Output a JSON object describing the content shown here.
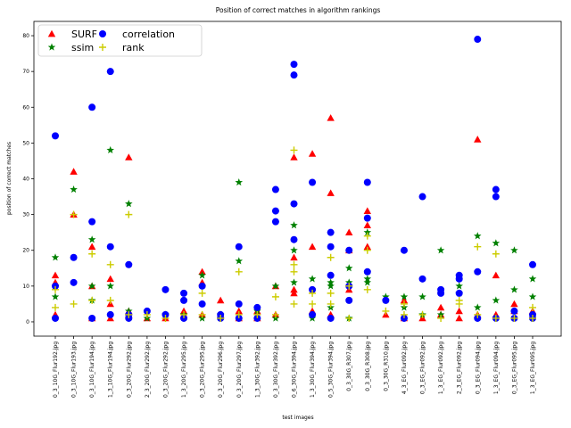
{
  "chart_data": {
    "type": "scatter",
    "title": "Position of correct matches in algorithm rankings",
    "xlabel": "test images",
    "ylabel": "position of correct matches",
    "ylim": [
      -4,
      84
    ],
    "yticks": [
      0,
      10,
      20,
      30,
      40,
      50,
      60,
      70,
      80
    ],
    "legend_placement": "top-left",
    "categories": [
      "0_3_10G_Flur192.jpg",
      "0_3_10G_Flur193.jpg",
      "0_3_10G_Flur194.jpg",
      "1_3_10G_Flur194.jpg",
      "0_3_20G_Flur292.jpg",
      "2_3_20G_Flur292.jpg",
      "0_3_20G_Flur292.jpg",
      "1_3_20G_Flur295.jpg",
      "0_3_20G_Flur295.jpg",
      "0_3_20G_Flur296.jpg",
      "0_3_20G_Flur297.jpg",
      "1_3_30G_Flur392.jpg",
      "0_3_30G_Flur392.jpg",
      "0_6_30G_Flur394.jpg",
      "1_3_30G_Flur394.jpg",
      "0_5_30G_Flur394.jpg",
      "0_3_30G_R307.jpg",
      "0_3_30G_R308.jpg",
      "0_3_30G_R310.jpg",
      "4_3_EG_Flur092.jpg",
      "0_3_EG_Flur092.jpg",
      "1_3_EG_Flur092.jpg",
      "2_3_EG_Flur092.jpg",
      "0_3_EG_Flur094.jpg",
      "1_3_EG_Flur094.jpg",
      "0_3_EG_Flur095.jpg",
      "1_3_EG_Flur095.jpg"
    ],
    "series": [
      {
        "name": "SURF",
        "marker": "triangle",
        "color": "#ff0000",
        "points": [
          [
            0,
            13
          ],
          [
            0,
            11
          ],
          [
            0,
            2
          ],
          [
            1,
            42
          ],
          [
            1,
            30
          ],
          [
            2,
            21
          ],
          [
            2,
            10
          ],
          [
            2,
            1
          ],
          [
            3,
            12
          ],
          [
            3,
            5
          ],
          [
            3,
            1
          ],
          [
            4,
            46
          ],
          [
            4,
            3
          ],
          [
            4,
            2
          ],
          [
            5,
            1
          ],
          [
            6,
            1
          ],
          [
            7,
            2
          ],
          [
            7,
            3
          ],
          [
            8,
            14
          ],
          [
            8,
            11
          ],
          [
            8,
            2
          ],
          [
            9,
            6
          ],
          [
            9,
            2
          ],
          [
            10,
            3
          ],
          [
            10,
            1
          ],
          [
            11,
            3
          ],
          [
            11,
            1
          ],
          [
            12,
            10
          ],
          [
            12,
            2
          ],
          [
            13,
            46
          ],
          [
            13,
            18
          ],
          [
            13,
            9
          ],
          [
            13,
            8
          ],
          [
            14,
            47
          ],
          [
            14,
            21
          ],
          [
            14,
            3
          ],
          [
            15,
            57
          ],
          [
            15,
            36
          ],
          [
            15,
            2
          ],
          [
            16,
            25
          ],
          [
            16,
            20
          ],
          [
            16,
            9
          ],
          [
            17,
            31
          ],
          [
            17,
            27
          ],
          [
            17,
            21
          ],
          [
            18,
            2
          ],
          [
            19,
            6
          ],
          [
            19,
            1
          ],
          [
            20,
            1
          ],
          [
            21,
            4
          ],
          [
            21,
            2
          ],
          [
            22,
            3
          ],
          [
            22,
            1
          ],
          [
            23,
            51
          ],
          [
            23,
            2
          ],
          [
            24,
            13
          ],
          [
            24,
            2
          ],
          [
            25,
            5
          ],
          [
            25,
            3
          ],
          [
            26,
            3
          ]
        ]
      },
      {
        "name": "ssim",
        "marker": "star",
        "color": "#008000",
        "points": [
          [
            0,
            18
          ],
          [
            0,
            7
          ],
          [
            1,
            37
          ],
          [
            2,
            23
          ],
          [
            2,
            10
          ],
          [
            2,
            6
          ],
          [
            3,
            48
          ],
          [
            3,
            10
          ],
          [
            4,
            33
          ],
          [
            4,
            3
          ],
          [
            5,
            1
          ],
          [
            6,
            2
          ],
          [
            7,
            2
          ],
          [
            8,
            13
          ],
          [
            8,
            1
          ],
          [
            9,
            2
          ],
          [
            10,
            39
          ],
          [
            10,
            17
          ],
          [
            11,
            3
          ],
          [
            12,
            10
          ],
          [
            12,
            1
          ],
          [
            13,
            27
          ],
          [
            13,
            20
          ],
          [
            13,
            11
          ],
          [
            14,
            12
          ],
          [
            14,
            1
          ],
          [
            15,
            11
          ],
          [
            15,
            10
          ],
          [
            15,
            4
          ],
          [
            16,
            15
          ],
          [
            16,
            11
          ],
          [
            16,
            1
          ],
          [
            17,
            25
          ],
          [
            17,
            12
          ],
          [
            17,
            11
          ],
          [
            18,
            7
          ],
          [
            19,
            7
          ],
          [
            19,
            4
          ],
          [
            20,
            7
          ],
          [
            20,
            2
          ],
          [
            21,
            20
          ],
          [
            21,
            2
          ],
          [
            22,
            10
          ],
          [
            22,
            8
          ],
          [
            23,
            24
          ],
          [
            23,
            4
          ],
          [
            24,
            22
          ],
          [
            24,
            6
          ],
          [
            25,
            20
          ],
          [
            25,
            9
          ],
          [
            26,
            12
          ],
          [
            26,
            7
          ]
        ]
      },
      {
        "name": "correlation",
        "marker": "circle",
        "color": "#0000ff",
        "points": [
          [
            0,
            52
          ],
          [
            0,
            10
          ],
          [
            0,
            1
          ],
          [
            1,
            18
          ],
          [
            1,
            11
          ],
          [
            2,
            60
          ],
          [
            2,
            28
          ],
          [
            2,
            1
          ],
          [
            3,
            70
          ],
          [
            3,
            21
          ],
          [
            3,
            2
          ],
          [
            4,
            16
          ],
          [
            4,
            2
          ],
          [
            4,
            1
          ],
          [
            5,
            3
          ],
          [
            6,
            9
          ],
          [
            6,
            2
          ],
          [
            7,
            8
          ],
          [
            7,
            6
          ],
          [
            7,
            1
          ],
          [
            8,
            10
          ],
          [
            8,
            5
          ],
          [
            9,
            2
          ],
          [
            9,
            1
          ],
          [
            10,
            21
          ],
          [
            10,
            5
          ],
          [
            10,
            1
          ],
          [
            11,
            4
          ],
          [
            11,
            1
          ],
          [
            12,
            37
          ],
          [
            12,
            31
          ],
          [
            12,
            28
          ],
          [
            13,
            72
          ],
          [
            13,
            69
          ],
          [
            13,
            33
          ],
          [
            13,
            23
          ],
          [
            14,
            39
          ],
          [
            14,
            9
          ],
          [
            14,
            2
          ],
          [
            15,
            25
          ],
          [
            15,
            21
          ],
          [
            15,
            13
          ],
          [
            15,
            1
          ],
          [
            16,
            20
          ],
          [
            16,
            10
          ],
          [
            16,
            6
          ],
          [
            17,
            39
          ],
          [
            17,
            29
          ],
          [
            17,
            14
          ],
          [
            18,
            6
          ],
          [
            19,
            20
          ],
          [
            19,
            1
          ],
          [
            20,
            35
          ],
          [
            20,
            12
          ],
          [
            21,
            9
          ],
          [
            21,
            8
          ],
          [
            22,
            13
          ],
          [
            22,
            12
          ],
          [
            22,
            8
          ],
          [
            23,
            79
          ],
          [
            23,
            14
          ],
          [
            23,
            1
          ],
          [
            24,
            37
          ],
          [
            24,
            35
          ],
          [
            24,
            1
          ],
          [
            25,
            3
          ],
          [
            25,
            1
          ],
          [
            26,
            16
          ],
          [
            26,
            2
          ],
          [
            26,
            1
          ]
        ]
      },
      {
        "name": "rank",
        "marker": "plus",
        "color": "#cccc00",
        "points": [
          [
            0,
            9
          ],
          [
            0,
            4
          ],
          [
            1,
            30
          ],
          [
            1,
            5
          ],
          [
            2,
            19
          ],
          [
            2,
            6
          ],
          [
            3,
            16
          ],
          [
            3,
            6
          ],
          [
            4,
            30
          ],
          [
            4,
            2
          ],
          [
            5,
            2
          ],
          [
            6,
            1
          ],
          [
            7,
            2
          ],
          [
            8,
            8
          ],
          [
            8,
            2
          ],
          [
            9,
            1
          ],
          [
            10,
            14
          ],
          [
            10,
            2
          ],
          [
            11,
            2
          ],
          [
            12,
            7
          ],
          [
            12,
            2
          ],
          [
            13,
            48
          ],
          [
            13,
            16
          ],
          [
            13,
            14
          ],
          [
            13,
            5
          ],
          [
            14,
            8
          ],
          [
            14,
            5
          ],
          [
            15,
            18
          ],
          [
            15,
            8
          ],
          [
            15,
            5
          ],
          [
            16,
            10
          ],
          [
            16,
            1
          ],
          [
            17,
            24
          ],
          [
            17,
            20
          ],
          [
            17,
            9
          ],
          [
            18,
            3
          ],
          [
            19,
            5
          ],
          [
            19,
            2
          ],
          [
            20,
            2
          ],
          [
            21,
            1
          ],
          [
            22,
            6
          ],
          [
            22,
            5
          ],
          [
            23,
            21
          ],
          [
            23,
            2
          ],
          [
            24,
            19
          ],
          [
            24,
            1
          ],
          [
            25,
            1
          ],
          [
            26,
            4
          ],
          [
            26,
            1
          ]
        ]
      }
    ]
  }
}
